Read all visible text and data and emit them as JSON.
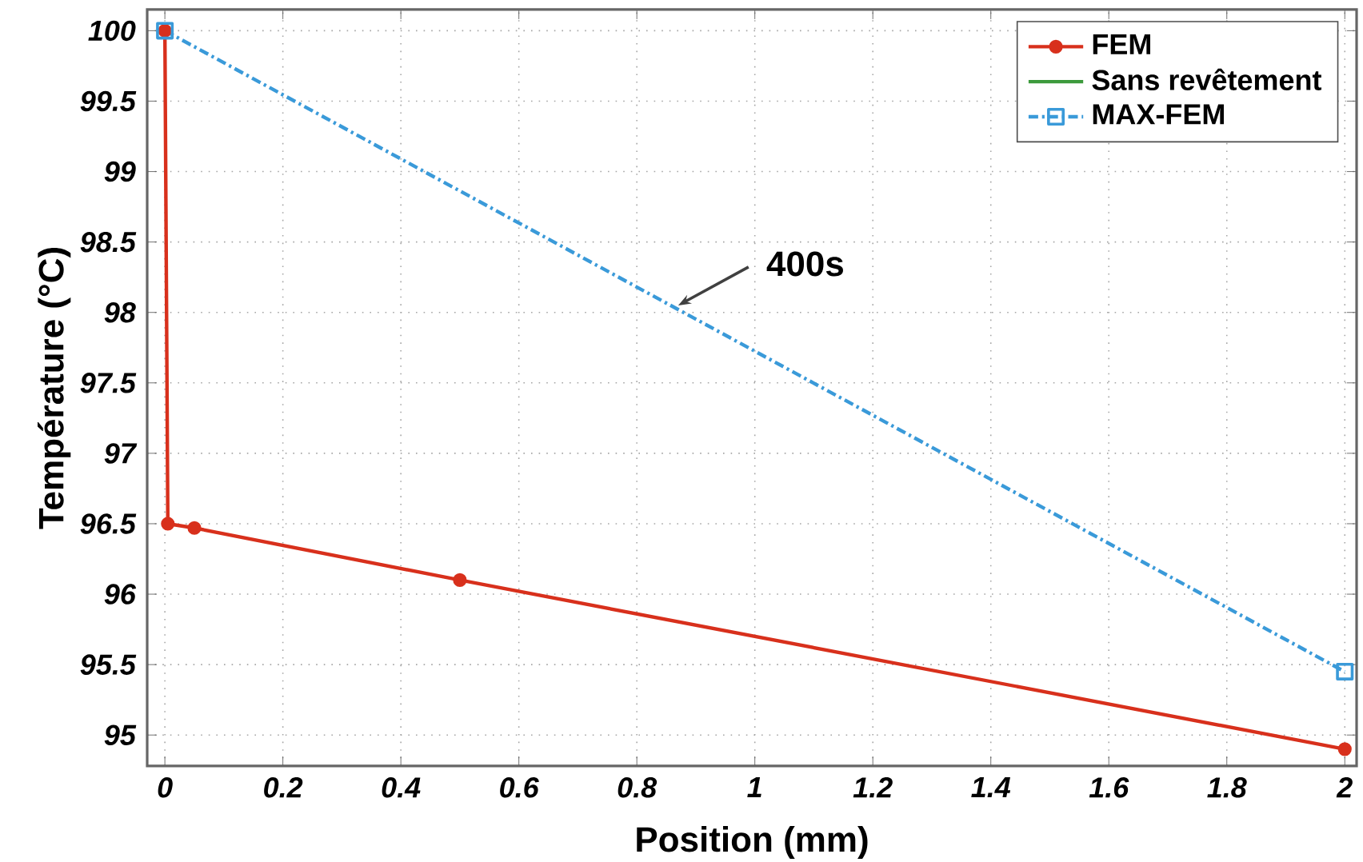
{
  "chart_data": {
    "type": "line",
    "xlabel": "Position (mm)",
    "ylabel": "Température (°C)",
    "xlim": [
      -0.03,
      2.02
    ],
    "ylim": [
      94.78,
      100.15
    ],
    "xticks": [
      0,
      0.2,
      0.4,
      0.6,
      0.8,
      1,
      1.2,
      1.4,
      1.6,
      1.8,
      2
    ],
    "yticks": [
      95,
      95.5,
      96,
      96.5,
      97,
      97.5,
      98,
      98.5,
      99,
      99.5,
      100
    ],
    "grid": true,
    "legend": "top right",
    "series": [
      {
        "name": "FEM",
        "color": "#d8301c",
        "marker": "circle",
        "line_style": "solid",
        "x": [
          0,
          0.005,
          0.05,
          0.5,
          2
        ],
        "values": [
          100,
          96.5,
          96.47,
          96.1,
          94.9
        ]
      },
      {
        "name": "Sans revêtement",
        "color": "#3c9a3c",
        "line_style": "solid"
      },
      {
        "name": "MAX-FEM",
        "color": "#3a9ad9",
        "marker": "square",
        "line_style": "dashed",
        "x": [
          0,
          2
        ],
        "values": [
          100,
          95.45
        ]
      }
    ],
    "annotations": [
      {
        "text": "400s",
        "x": 0.87,
        "y": 98.05
      }
    ]
  }
}
